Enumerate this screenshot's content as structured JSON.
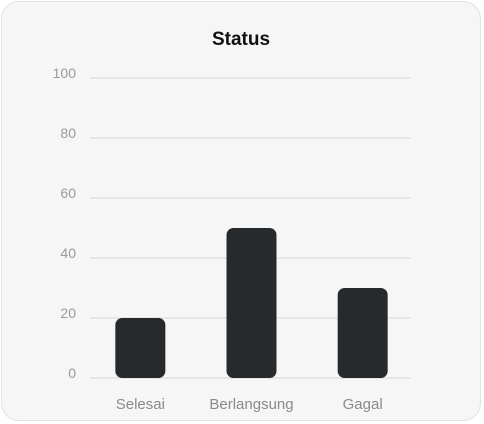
{
  "chart_data": {
    "type": "bar",
    "title": "Status",
    "categories": [
      "Selesai",
      "Berlangsung",
      "Gagal"
    ],
    "values": [
      20,
      50,
      30
    ],
    "ylim": [
      0,
      100
    ],
    "yticks": [
      0,
      20,
      40,
      60,
      80,
      100
    ],
    "grid": true,
    "bar_color": "#272a2d",
    "grid_color": "#dcdcdc"
  }
}
